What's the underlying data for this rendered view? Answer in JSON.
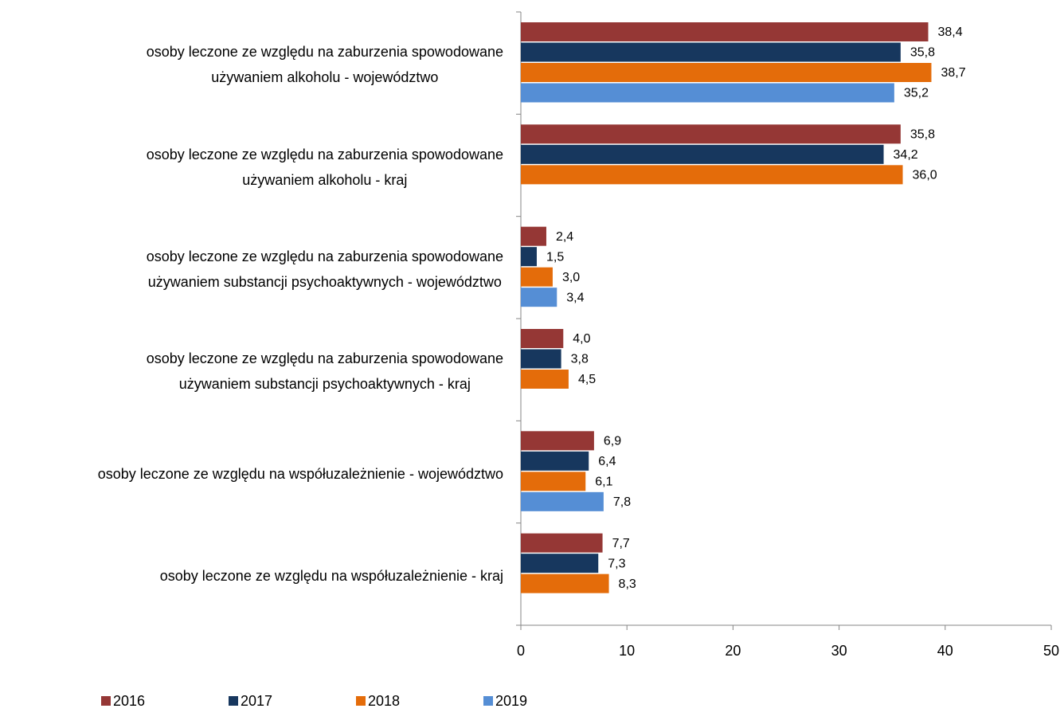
{
  "chart_data": {
    "type": "barh",
    "categories": [
      "osoby leczone ze względu na zaburzenia spowodowane\nużywaniem alkoholu - województwo",
      "osoby leczone ze względu na zaburzenia spowodowane\nużywaniem alkoholu - kraj",
      "osoby leczone ze względu na zaburzenia spowodowane\nużywaniem substancji psychoaktywnych - województwo",
      "osoby leczone ze względu na zaburzenia spowodowane\nużywaniem substancji psychoaktywnych - kraj",
      "osoby leczone ze względu na współuzależnienie - województwo",
      "osoby leczone ze względu na współuzależnienie - kraj"
    ],
    "series": [
      {
        "name": "2016",
        "color": "#953735",
        "values": [
          38.4,
          35.8,
          2.4,
          4.0,
          6.9,
          7.7
        ],
        "value_labels": [
          "38,4",
          "35,8",
          "2,4",
          "4,0",
          "6,9",
          "7,7"
        ]
      },
      {
        "name": "2017",
        "color": "#17375e",
        "values": [
          35.8,
          34.2,
          1.5,
          3.8,
          6.4,
          7.3
        ],
        "value_labels": [
          "35,8",
          "34,2",
          "1,5",
          "3,8",
          "6,4",
          "7,3"
        ]
      },
      {
        "name": "2018",
        "color": "#e46c0a",
        "values": [
          38.7,
          36.0,
          3.0,
          4.5,
          6.1,
          8.3
        ],
        "value_labels": [
          "38,7",
          "36,0",
          "3,0",
          "4,5",
          "6,1",
          "8,3"
        ]
      },
      {
        "name": "2019",
        "color": "#558ed5",
        "values": [
          35.2,
          null,
          3.4,
          null,
          7.8,
          null
        ],
        "value_labels": [
          "35,2",
          null,
          "3,4",
          null,
          "7,8",
          null
        ]
      }
    ],
    "xlim": [
      0,
      50
    ],
    "xticks": [
      0,
      10,
      20,
      30,
      40,
      50
    ],
    "legend": "bottom"
  }
}
